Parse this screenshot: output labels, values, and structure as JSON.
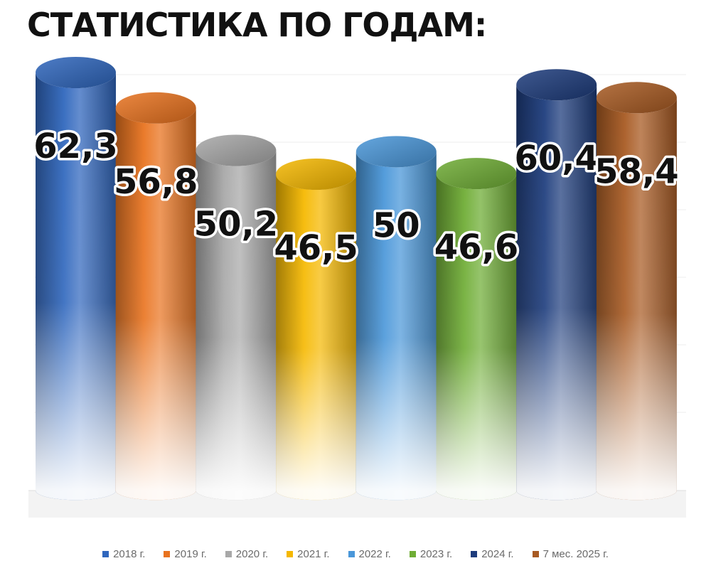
{
  "title": "СТАТИСТИКА ПО ГОДАМ:",
  "chart_data": {
    "type": "bar",
    "categories": [
      "2018 г.",
      "2019 г.",
      "2020 г.",
      "2021 г.",
      "2022 г.",
      "2023 г.",
      "2024 г.",
      "7 мес. 2025 г."
    ],
    "values": [
      62.3,
      56.8,
      50.2,
      46.5,
      50,
      46.6,
      60.4,
      58.4
    ],
    "data_labels": [
      "62,3",
      "56,8",
      "50,2",
      "46,5",
      "50",
      "46,6",
      "60,4",
      "58,4"
    ],
    "colors": [
      "#2f66bd",
      "#e9731f",
      "#a8a8a8",
      "#f5b800",
      "#4a97d9",
      "#6fad35",
      "#1d3c7c",
      "#a85a22"
    ],
    "legend": "bottom",
    "grid": true,
    "ylim": [
      0,
      65
    ]
  }
}
